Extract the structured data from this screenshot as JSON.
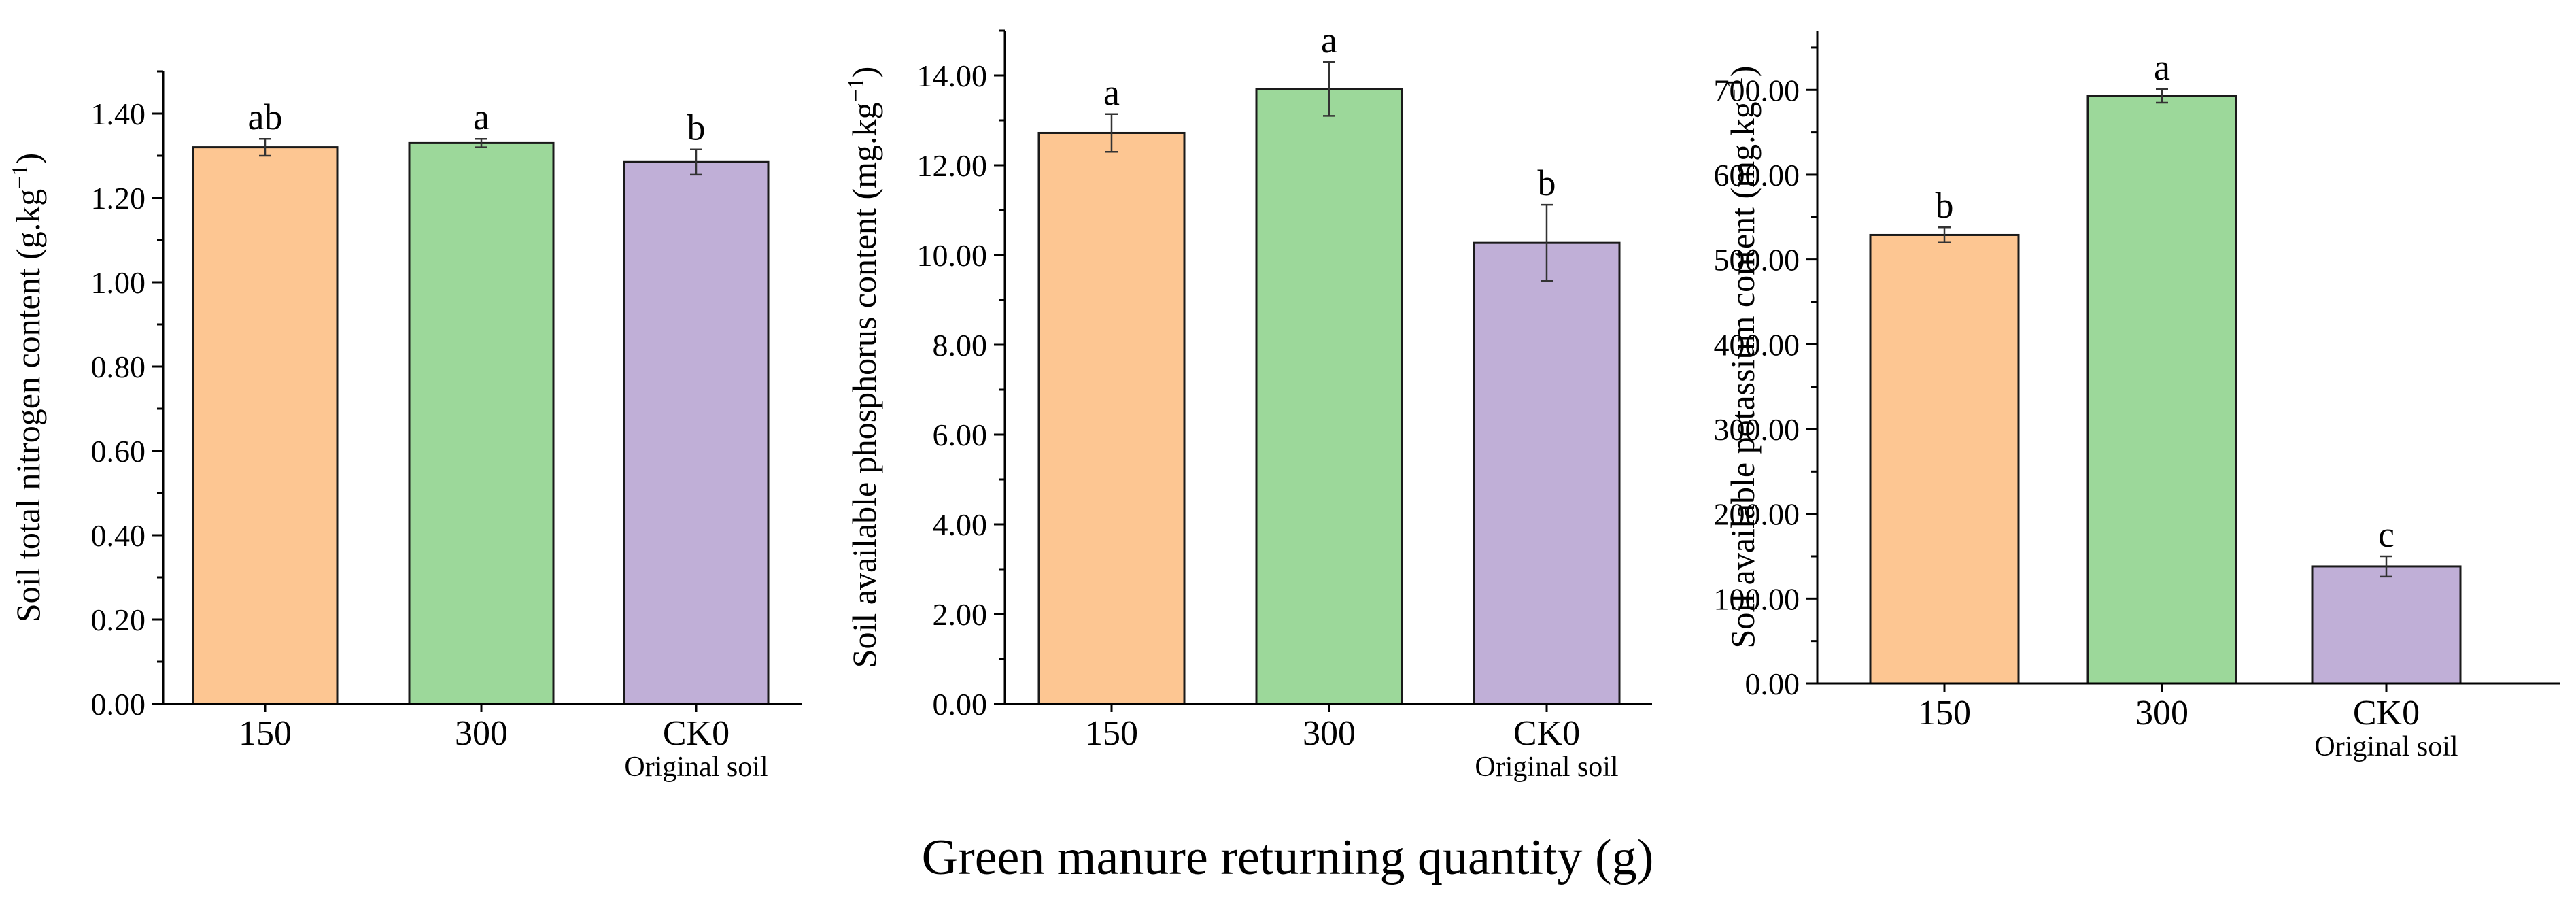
{
  "figure": {
    "x_title": "Green manure returning quantity (g)"
  },
  "colors": {
    "bar_150": "#FDC692",
    "bar_300": "#9CD89A",
    "bar_ck0": "#C0AFD7",
    "axis": "#000000"
  },
  "chart_data": [
    {
      "type": "bar",
      "title": "",
      "ylabel": "Soil total nitrogen content (g.kg⁻¹)",
      "ylabel_main": "Soil total nitrogen content (g.kg",
      "ylabel_sup": "−1",
      "ylabel_tail": ")",
      "categories": [
        "150",
        "300",
        "CK0"
      ],
      "category_sublabels": [
        "",
        "",
        "Original soil"
      ],
      "values": [
        1.32,
        1.33,
        1.285
      ],
      "errors": [
        0.02,
        0.01,
        0.03
      ],
      "significance": [
        "ab",
        "a",
        "b"
      ],
      "ylim": [
        0,
        1.5
      ],
      "ticks": [
        0,
        0.2,
        0.4,
        0.6,
        0.8,
        1.0,
        1.2,
        1.4
      ],
      "tick_labels": [
        "0.00",
        "0.20",
        "0.40",
        "0.60",
        "0.80",
        "1.00",
        "1.20",
        "1.40"
      ]
    },
    {
      "type": "bar",
      "title": "",
      "ylabel": "Soil available phosphorus content (mg.kg⁻¹)",
      "ylabel_main": "Soil available phosphorus content (mg.kg",
      "ylabel_sup": "−1",
      "ylabel_tail": ")",
      "categories": [
        "150",
        "300",
        "CK0"
      ],
      "category_sublabels": [
        "",
        "",
        "Original soil"
      ],
      "values": [
        12.72,
        13.7,
        10.27
      ],
      "errors": [
        0.42,
        0.6,
        0.85
      ],
      "significance": [
        "a",
        "a",
        "b"
      ],
      "ylim": [
        0,
        15
      ],
      "ticks": [
        0,
        2,
        4,
        6,
        8,
        10,
        12,
        14
      ],
      "tick_labels": [
        "0.00",
        "2.00",
        "4.00",
        "6.00",
        "8.00",
        "10.00",
        "12.00",
        "14.00"
      ]
    },
    {
      "type": "bar",
      "title": "",
      "ylabel": "Soil available potassium content (mg.kg⁻¹)",
      "ylabel_main": "Soil available potassium content (mg.kg",
      "ylabel_sup": "−1",
      "ylabel_tail": ")",
      "categories": [
        "150",
        "300",
        "CK0"
      ],
      "category_sublabels": [
        "",
        "",
        "Original soil"
      ],
      "values": [
        529,
        693,
        138
      ],
      "errors": [
        9,
        8,
        12
      ],
      "significance": [
        "b",
        "a",
        "c"
      ],
      "ylim": [
        0,
        770
      ],
      "ticks": [
        0,
        100,
        200,
        300,
        400,
        500,
        600,
        700
      ],
      "tick_labels": [
        "0.00",
        "100.00",
        "200.00",
        "300.00",
        "400.00",
        "500.00",
        "600.00",
        "700.00"
      ]
    }
  ]
}
